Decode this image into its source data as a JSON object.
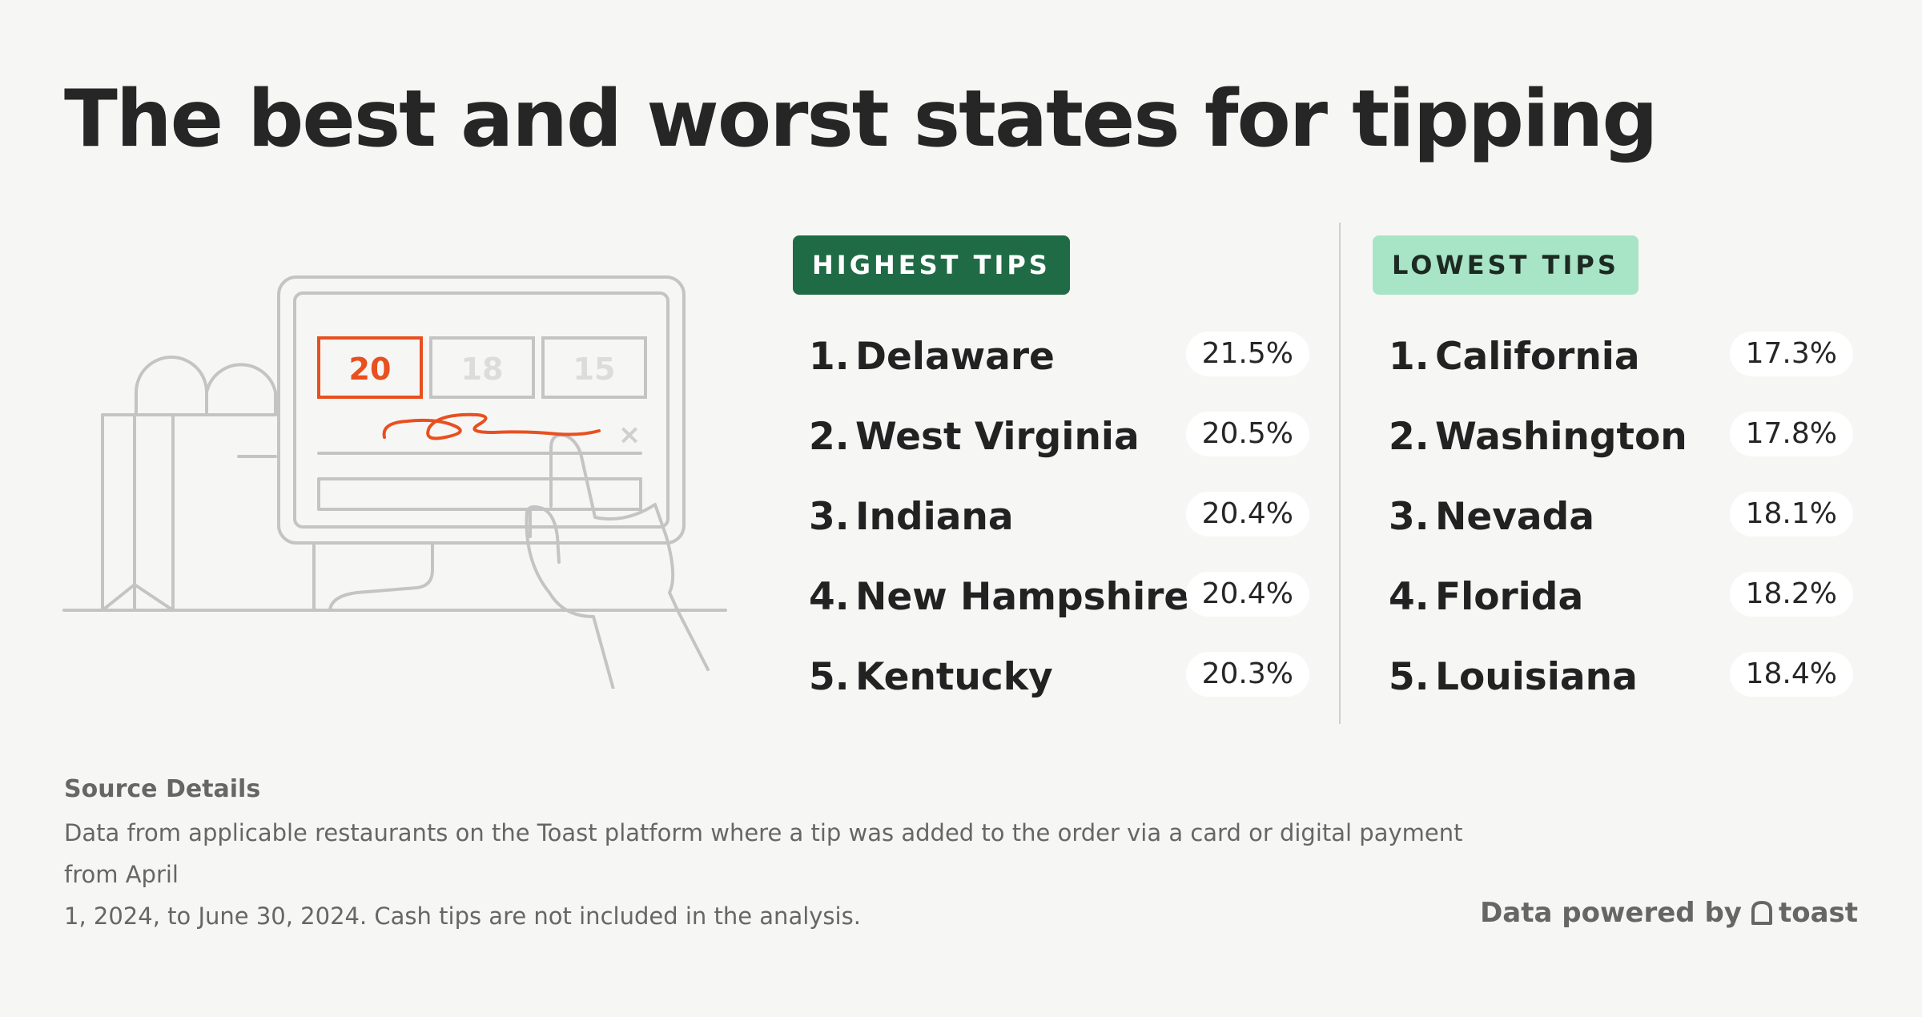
{
  "title": "The best and worst states for tipping",
  "illustration": {
    "tip_options": [
      "20",
      "18",
      "15"
    ],
    "selected": "20",
    "close_glyph": "×",
    "accent_color": "#e8501f"
  },
  "highest": {
    "label": "HIGHEST TIPS",
    "color": "#1f6b46",
    "items": [
      {
        "rank": "1.",
        "state": "Delaware",
        "pct": "21.5%"
      },
      {
        "rank": "2.",
        "state": "West Virginia",
        "pct": "20.5%"
      },
      {
        "rank": "3.",
        "state": "Indiana",
        "pct": "20.4%"
      },
      {
        "rank": "4.",
        "state": "New Hampshire",
        "pct": "20.4%"
      },
      {
        "rank": "5.",
        "state": "Kentucky",
        "pct": "20.3%"
      }
    ]
  },
  "lowest": {
    "label": "LOWEST TIPS",
    "color": "#a8e4c6",
    "items": [
      {
        "rank": "1.",
        "state": "California",
        "pct": "17.3%"
      },
      {
        "rank": "2.",
        "state": "Washington",
        "pct": "17.8%"
      },
      {
        "rank": "3.",
        "state": "Nevada",
        "pct": "18.1%"
      },
      {
        "rank": "4.",
        "state": "Florida",
        "pct": "18.2%"
      },
      {
        "rank": "5.",
        "state": "Louisiana",
        "pct": "18.4%"
      }
    ]
  },
  "source": {
    "title": "Source Details",
    "line1": "Data from applicable restaurants on the Toast platform where a tip was added to the order via a card or digital payment from April",
    "line2": "1, 2024, to June 30, 2024. Cash tips are not included in the analysis."
  },
  "footer": {
    "powered_by": "Data powered by",
    "brand": "toast"
  }
}
